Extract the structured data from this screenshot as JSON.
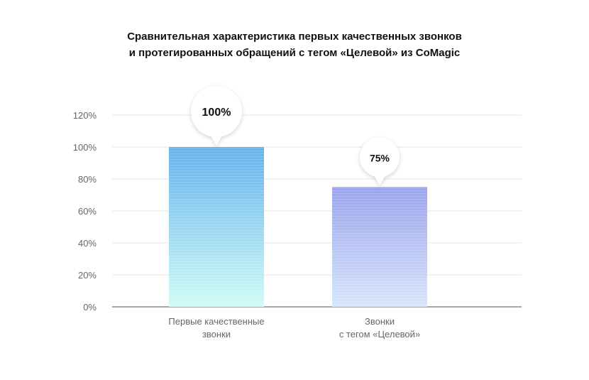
{
  "chart_data": {
    "type": "bar",
    "title_lines": [
      "Сравнительная характеристика первых качественных звонков",
      "и протегированных обращений с тегом «Целевой» из CoMagic"
    ],
    "categories": [
      [
        "Первые качественные",
        "звонки"
      ],
      [
        "Звонки",
        "с тегом «Целевой»"
      ]
    ],
    "values": [
      100,
      75
    ],
    "data_labels": [
      "100%",
      "75%"
    ],
    "yticks": [
      "0%",
      "20%",
      "40%",
      "60%",
      "80%",
      "100%",
      "120%"
    ],
    "ylim": [
      0,
      120
    ],
    "grid": true,
    "colors": {
      "bar1_top": "#62b3ee",
      "bar1_bottom": "#cffcf6",
      "bar2_top": "#9aa3f0",
      "bar2_bottom": "#d6e6fb"
    }
  }
}
